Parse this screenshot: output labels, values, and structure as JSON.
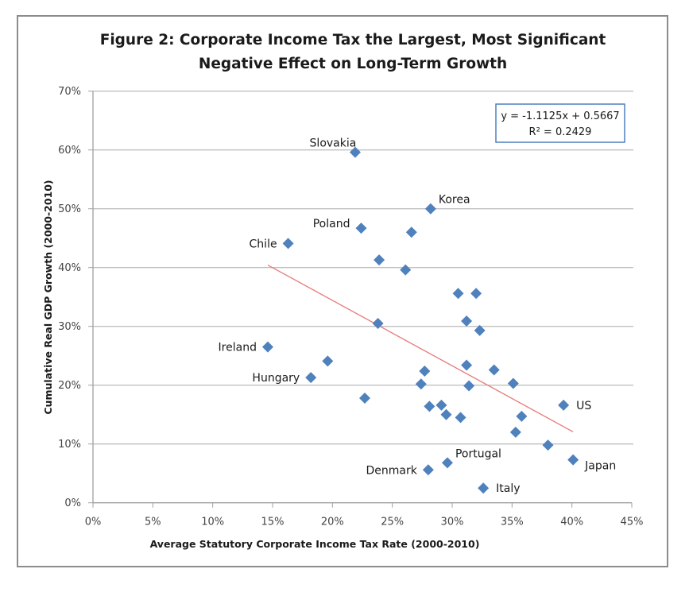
{
  "chart_data": {
    "type": "scatter",
    "title": [
      "Figure 2: Corporate Income Tax the Largest, Most Significant",
      "Negative Effect on Long-Term Growth"
    ],
    "xlabel": "Average Statutory Corporate Income Tax Rate (2000-2010)",
    "ylabel": "Cumulative Real GDP Growth (2000-2010)",
    "xlim": [
      0,
      0.45
    ],
    "ylim": [
      0,
      0.7
    ],
    "x_ticks": [
      0,
      0.05,
      0.1,
      0.15,
      0.2,
      0.25,
      0.3,
      0.35,
      0.4,
      0.45
    ],
    "x_tick_labels": [
      "0%",
      "5%",
      "10%",
      "15%",
      "20%",
      "25%",
      "30%",
      "35%",
      "40%",
      "45%"
    ],
    "y_ticks": [
      0,
      0.1,
      0.2,
      0.3,
      0.4,
      0.5,
      0.6,
      0.7
    ],
    "y_tick_labels": [
      "0%",
      "10%",
      "20%",
      "30%",
      "40%",
      "50%",
      "60%",
      "70%"
    ],
    "grid": "horizontal",
    "marker_color": "#4F81BD",
    "trendline_color": "#E8787A",
    "series": [
      {
        "name": "Countries",
        "points": [
          {
            "x": 0.219,
            "y": 0.596,
            "label": "Slovakia",
            "label_pos": "top-left"
          },
          {
            "x": 0.282,
            "y": 0.5,
            "label": "Korea",
            "label_pos": "top-right"
          },
          {
            "x": 0.224,
            "y": 0.467,
            "label": "Poland",
            "label_pos": "left-up"
          },
          {
            "x": 0.266,
            "y": 0.46,
            "label": ""
          },
          {
            "x": 0.163,
            "y": 0.441,
            "label": "Chile",
            "label_pos": "left"
          },
          {
            "x": 0.239,
            "y": 0.413,
            "label": ""
          },
          {
            "x": 0.261,
            "y": 0.396,
            "label": ""
          },
          {
            "x": 0.305,
            "y": 0.356,
            "label": ""
          },
          {
            "x": 0.32,
            "y": 0.356,
            "label": ""
          },
          {
            "x": 0.238,
            "y": 0.305,
            "label": ""
          },
          {
            "x": 0.312,
            "y": 0.309,
            "label": ""
          },
          {
            "x": 0.323,
            "y": 0.293,
            "label": ""
          },
          {
            "x": 0.146,
            "y": 0.265,
            "label": "Ireland",
            "label_pos": "left"
          },
          {
            "x": 0.196,
            "y": 0.241,
            "label": ""
          },
          {
            "x": 0.182,
            "y": 0.213,
            "label": "Hungary",
            "label_pos": "left"
          },
          {
            "x": 0.312,
            "y": 0.234,
            "label": ""
          },
          {
            "x": 0.277,
            "y": 0.224,
            "label": ""
          },
          {
            "x": 0.335,
            "y": 0.226,
            "label": ""
          },
          {
            "x": 0.274,
            "y": 0.202,
            "label": ""
          },
          {
            "x": 0.314,
            "y": 0.199,
            "label": ""
          },
          {
            "x": 0.351,
            "y": 0.203,
            "label": ""
          },
          {
            "x": 0.227,
            "y": 0.178,
            "label": ""
          },
          {
            "x": 0.281,
            "y": 0.164,
            "label": ""
          },
          {
            "x": 0.291,
            "y": 0.166,
            "label": ""
          },
          {
            "x": 0.295,
            "y": 0.15,
            "label": ""
          },
          {
            "x": 0.307,
            "y": 0.145,
            "label": ""
          },
          {
            "x": 0.393,
            "y": 0.166,
            "label": "US",
            "label_pos": "right"
          },
          {
            "x": 0.358,
            "y": 0.147,
            "label": ""
          },
          {
            "x": 0.353,
            "y": 0.12,
            "label": ""
          },
          {
            "x": 0.38,
            "y": 0.098,
            "label": ""
          },
          {
            "x": 0.28,
            "y": 0.056,
            "label": "Denmark",
            "label_pos": "left"
          },
          {
            "x": 0.296,
            "y": 0.068,
            "label": "Portugal",
            "label_pos": "top-right"
          },
          {
            "x": 0.326,
            "y": 0.025,
            "label": "Italy",
            "label_pos": "right"
          },
          {
            "x": 0.401,
            "y": 0.073,
            "label": "Japan",
            "label_pos": "right-down"
          }
        ]
      }
    ],
    "trendline": {
      "type": "linear",
      "slope": -1.1125,
      "intercept": 0.5667,
      "x_range": [
        0.146,
        0.401
      ],
      "equation_text": "y = -1.1125x + 0.5667",
      "r2_text": "R² = 0.2429",
      "legend_position": "top-right"
    }
  }
}
